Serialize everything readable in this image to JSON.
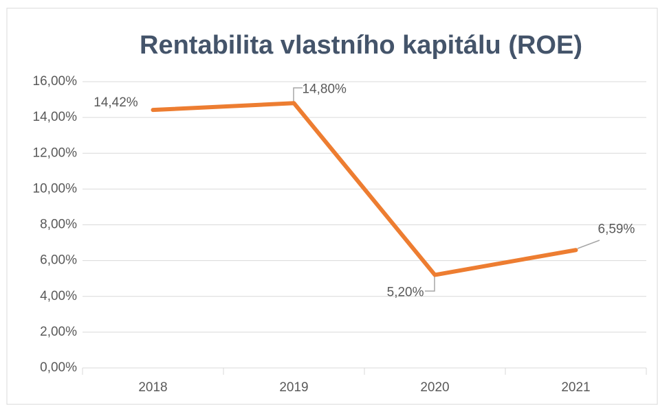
{
  "chart_data": {
    "type": "line",
    "title": "Rentabilita vlastního kapitálu (ROE)",
    "categories": [
      "2018",
      "2019",
      "2020",
      "2021"
    ],
    "values": [
      14.42,
      14.8,
      5.2,
      6.59
    ],
    "value_labels": [
      "14,42%",
      "14,80%",
      "5,20%",
      "6,59%"
    ],
    "color": "#ed7d31",
    "ylim": [
      0,
      16
    ],
    "yticks": [
      {
        "value": 0,
        "label": "0,00%"
      },
      {
        "value": 2,
        "label": "2,00%"
      },
      {
        "value": 4,
        "label": "4,00%"
      },
      {
        "value": 6,
        "label": "6,00%"
      },
      {
        "value": 8,
        "label": "8,00%"
      },
      {
        "value": 10,
        "label": "10,00%"
      },
      {
        "value": 12,
        "label": "12,00%"
      },
      {
        "value": 14,
        "label": "14,00%"
      },
      {
        "value": 16,
        "label": "16,00%"
      }
    ],
    "grid": true
  }
}
